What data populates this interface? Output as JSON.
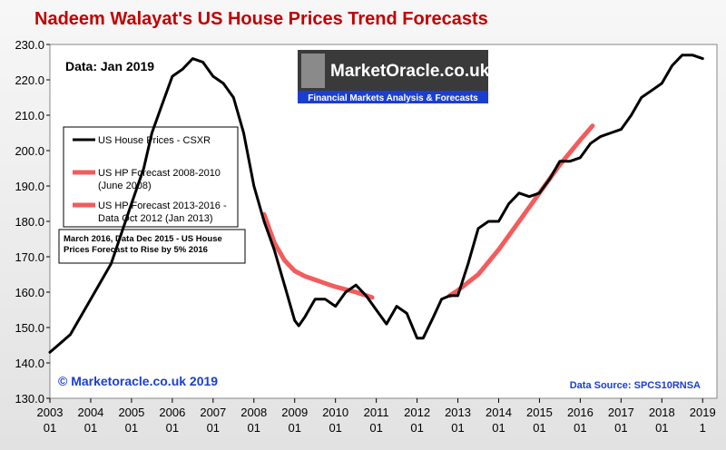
{
  "chart_data": {
    "type": "line",
    "title": "Nadeem Walayat's US House Prices Trend Forecasts",
    "annotations": {
      "data_date": "Data:  Jan 2019",
      "logo": "MarketOracle.co.uk",
      "logo_tagline": "Financial Markets Analysis & Forecasts",
      "note": "March 2016, Data Dec 2015 - US House\nPrices Forecast to Rise by 5% 2016",
      "copyright": "© Marketoracle.co.uk 2019",
      "source": "Data Source: SPCS10RNSA"
    },
    "xlim": [
      2003,
      2019.35
    ],
    "xticks": [
      2003,
      2004,
      2005,
      2006,
      2007,
      2008,
      2009,
      2010,
      2011,
      2012,
      2013,
      2014,
      2015,
      2016,
      2017,
      2018,
      2019
    ],
    "xtick_sublabels": [
      "01",
      "01",
      "01",
      "01",
      "01",
      "01",
      "01",
      "01",
      "01",
      "01",
      "01",
      "01",
      "01",
      "01",
      "01",
      "01",
      "1"
    ],
    "ylim": [
      130,
      230
    ],
    "yticks": [
      {
        "value": 130,
        "label": "130.0"
      },
      {
        "value": 140,
        "label": "140.0"
      },
      {
        "value": 150,
        "label": "150.0"
      },
      {
        "value": 160,
        "label": "160.0"
      },
      {
        "value": 170,
        "label": "170.0"
      },
      {
        "value": 180,
        "label": "180.0"
      },
      {
        "value": 190,
        "label": "190.0"
      },
      {
        "value": 200,
        "label": "200.0"
      },
      {
        "value": 210,
        "label": "210.0"
      },
      {
        "value": 220,
        "label": "220.0"
      },
      {
        "value": 230,
        "label": "230.0"
      }
    ],
    "series": [
      {
        "name": "US House Prices - CSXR",
        "color": "#000000",
        "x": [
          2003.0,
          2003.5,
          2004.0,
          2004.5,
          2005.0,
          2005.3,
          2005.5,
          2005.75,
          2006.0,
          2006.25,
          2006.5,
          2006.75,
          2007.0,
          2007.25,
          2007.5,
          2007.75,
          2008.0,
          2008.25,
          2008.5,
          2008.75,
          2009.0,
          2009.1,
          2009.25,
          2009.5,
          2009.75,
          2010.0,
          2010.25,
          2010.5,
          2010.75,
          2011.0,
          2011.25,
          2011.5,
          2011.75,
          2012.0,
          2012.15,
          2012.4,
          2012.6,
          2012.8,
          2013.0,
          2013.25,
          2013.5,
          2013.75,
          2014.0,
          2014.25,
          2014.5,
          2014.75,
          2015.0,
          2015.25,
          2015.5,
          2015.75,
          2016.0,
          2016.25,
          2016.5,
          2016.75,
          2017.0,
          2017.25,
          2017.5,
          2017.75,
          2018.0,
          2018.25,
          2018.5,
          2018.75,
          2019.0
        ],
        "values": [
          143,
          148,
          158,
          168,
          185,
          195,
          205,
          213,
          221,
          223,
          226,
          225,
          221,
          219,
          215,
          205,
          190,
          180,
          172,
          162,
          152,
          150.5,
          153,
          158,
          158,
          156,
          160,
          162,
          159,
          155,
          151,
          156,
          154,
          147,
          147,
          153,
          158,
          159,
          159,
          168,
          178,
          180,
          180,
          185,
          188,
          187,
          188,
          192,
          197,
          197,
          198,
          202,
          204,
          205,
          206,
          210,
          215,
          217,
          219,
          224,
          227,
          227,
          226
        ]
      },
      {
        "name": "US HP Forecast 2008-2010\n(June 2008)",
        "color": "#f25c5c",
        "x": [
          2008.25,
          2008.5,
          2008.75,
          2009.0,
          2009.25,
          2009.5,
          2009.75,
          2010.0,
          2010.5,
          2010.9
        ],
        "values": [
          182,
          174,
          169,
          166,
          164.5,
          163.5,
          162.5,
          161.5,
          160,
          158.5
        ]
      },
      {
        "name": "US HP Forecast 2013-2016 -\nData Oct 2012 (Jan 2013)",
        "color": "#f25c5c",
        "x": [
          2012.8,
          2013.0,
          2013.5,
          2014.0,
          2014.5,
          2015.0,
          2015.5,
          2016.0,
          2016.3
        ],
        "values": [
          159,
          160.5,
          165,
          172,
          180,
          188,
          196,
          203,
          207
        ]
      }
    ]
  }
}
